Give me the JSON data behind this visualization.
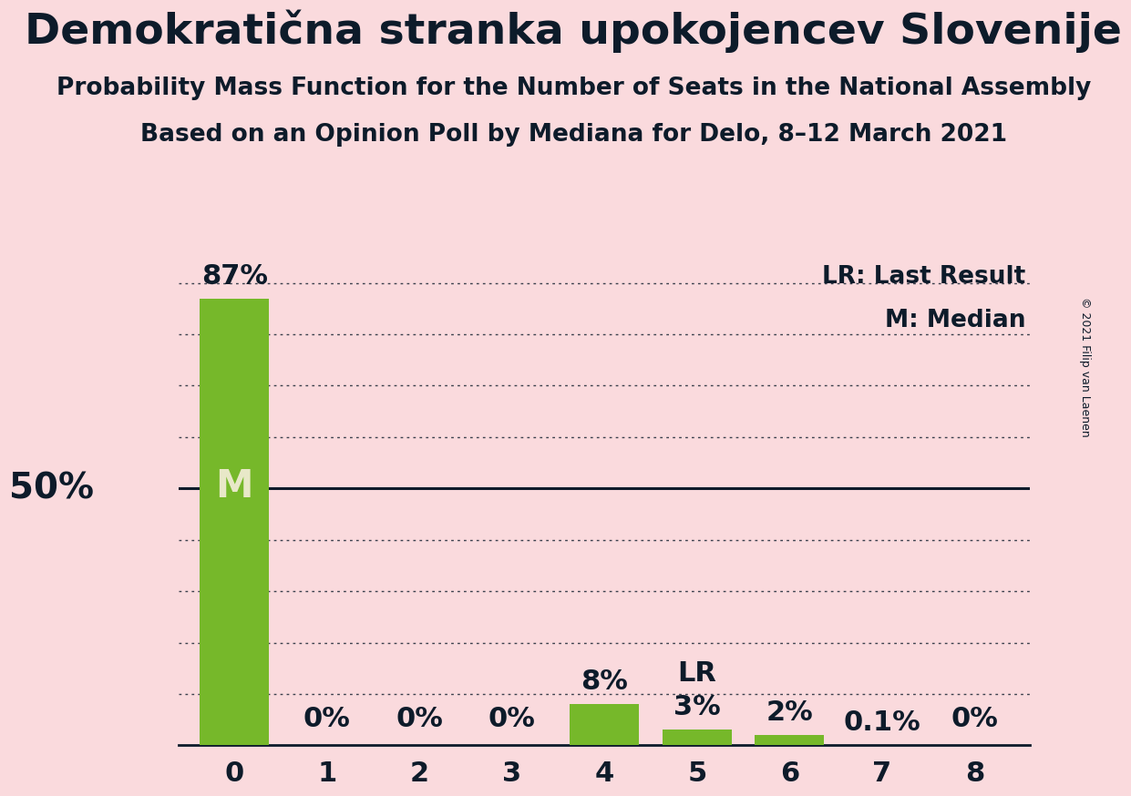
{
  "title": "Demokratična stranka upokojencev Slovenije",
  "subtitle1": "Probability Mass Function for the Number of Seats in the National Assembly",
  "subtitle2": "Based on an Opinion Poll by Mediana for Delo, 8–12 March 2021",
  "copyright": "© 2021 Filip van Laenen",
  "categories": [
    0,
    1,
    2,
    3,
    4,
    5,
    6,
    7,
    8
  ],
  "values": [
    87,
    0,
    0,
    0,
    8,
    3,
    2,
    0.1,
    0
  ],
  "bar_color": "#76b82a",
  "background_color": "#fadadd",
  "text_color": "#0d1b2a",
  "label_50pct": "50%",
  "median_seat": 0,
  "median_label": "M",
  "median_label_color": "#e8e8c8",
  "last_result_seat": 5,
  "last_result_label": "LR",
  "pct_labels": [
    "87%",
    "0%",
    "0%",
    "0%",
    "8%",
    "3%",
    "2%",
    "0.1%",
    "0%"
  ],
  "fifty_pct_line": 50,
  "ylim_max": 95,
  "legend_lr": "LR: Last Result",
  "legend_m": "M: Median",
  "title_fontsize": 34,
  "subtitle_fontsize": 19,
  "axis_tick_fontsize": 22,
  "bar_label_fontsize": 22,
  "fifty_label_fontsize": 28,
  "legend_fontsize": 19,
  "median_fontsize": 30,
  "copyright_fontsize": 9,
  "grid_levels": [
    10,
    20,
    30,
    40,
    60,
    70,
    80,
    90
  ],
  "bar_width": 0.75
}
